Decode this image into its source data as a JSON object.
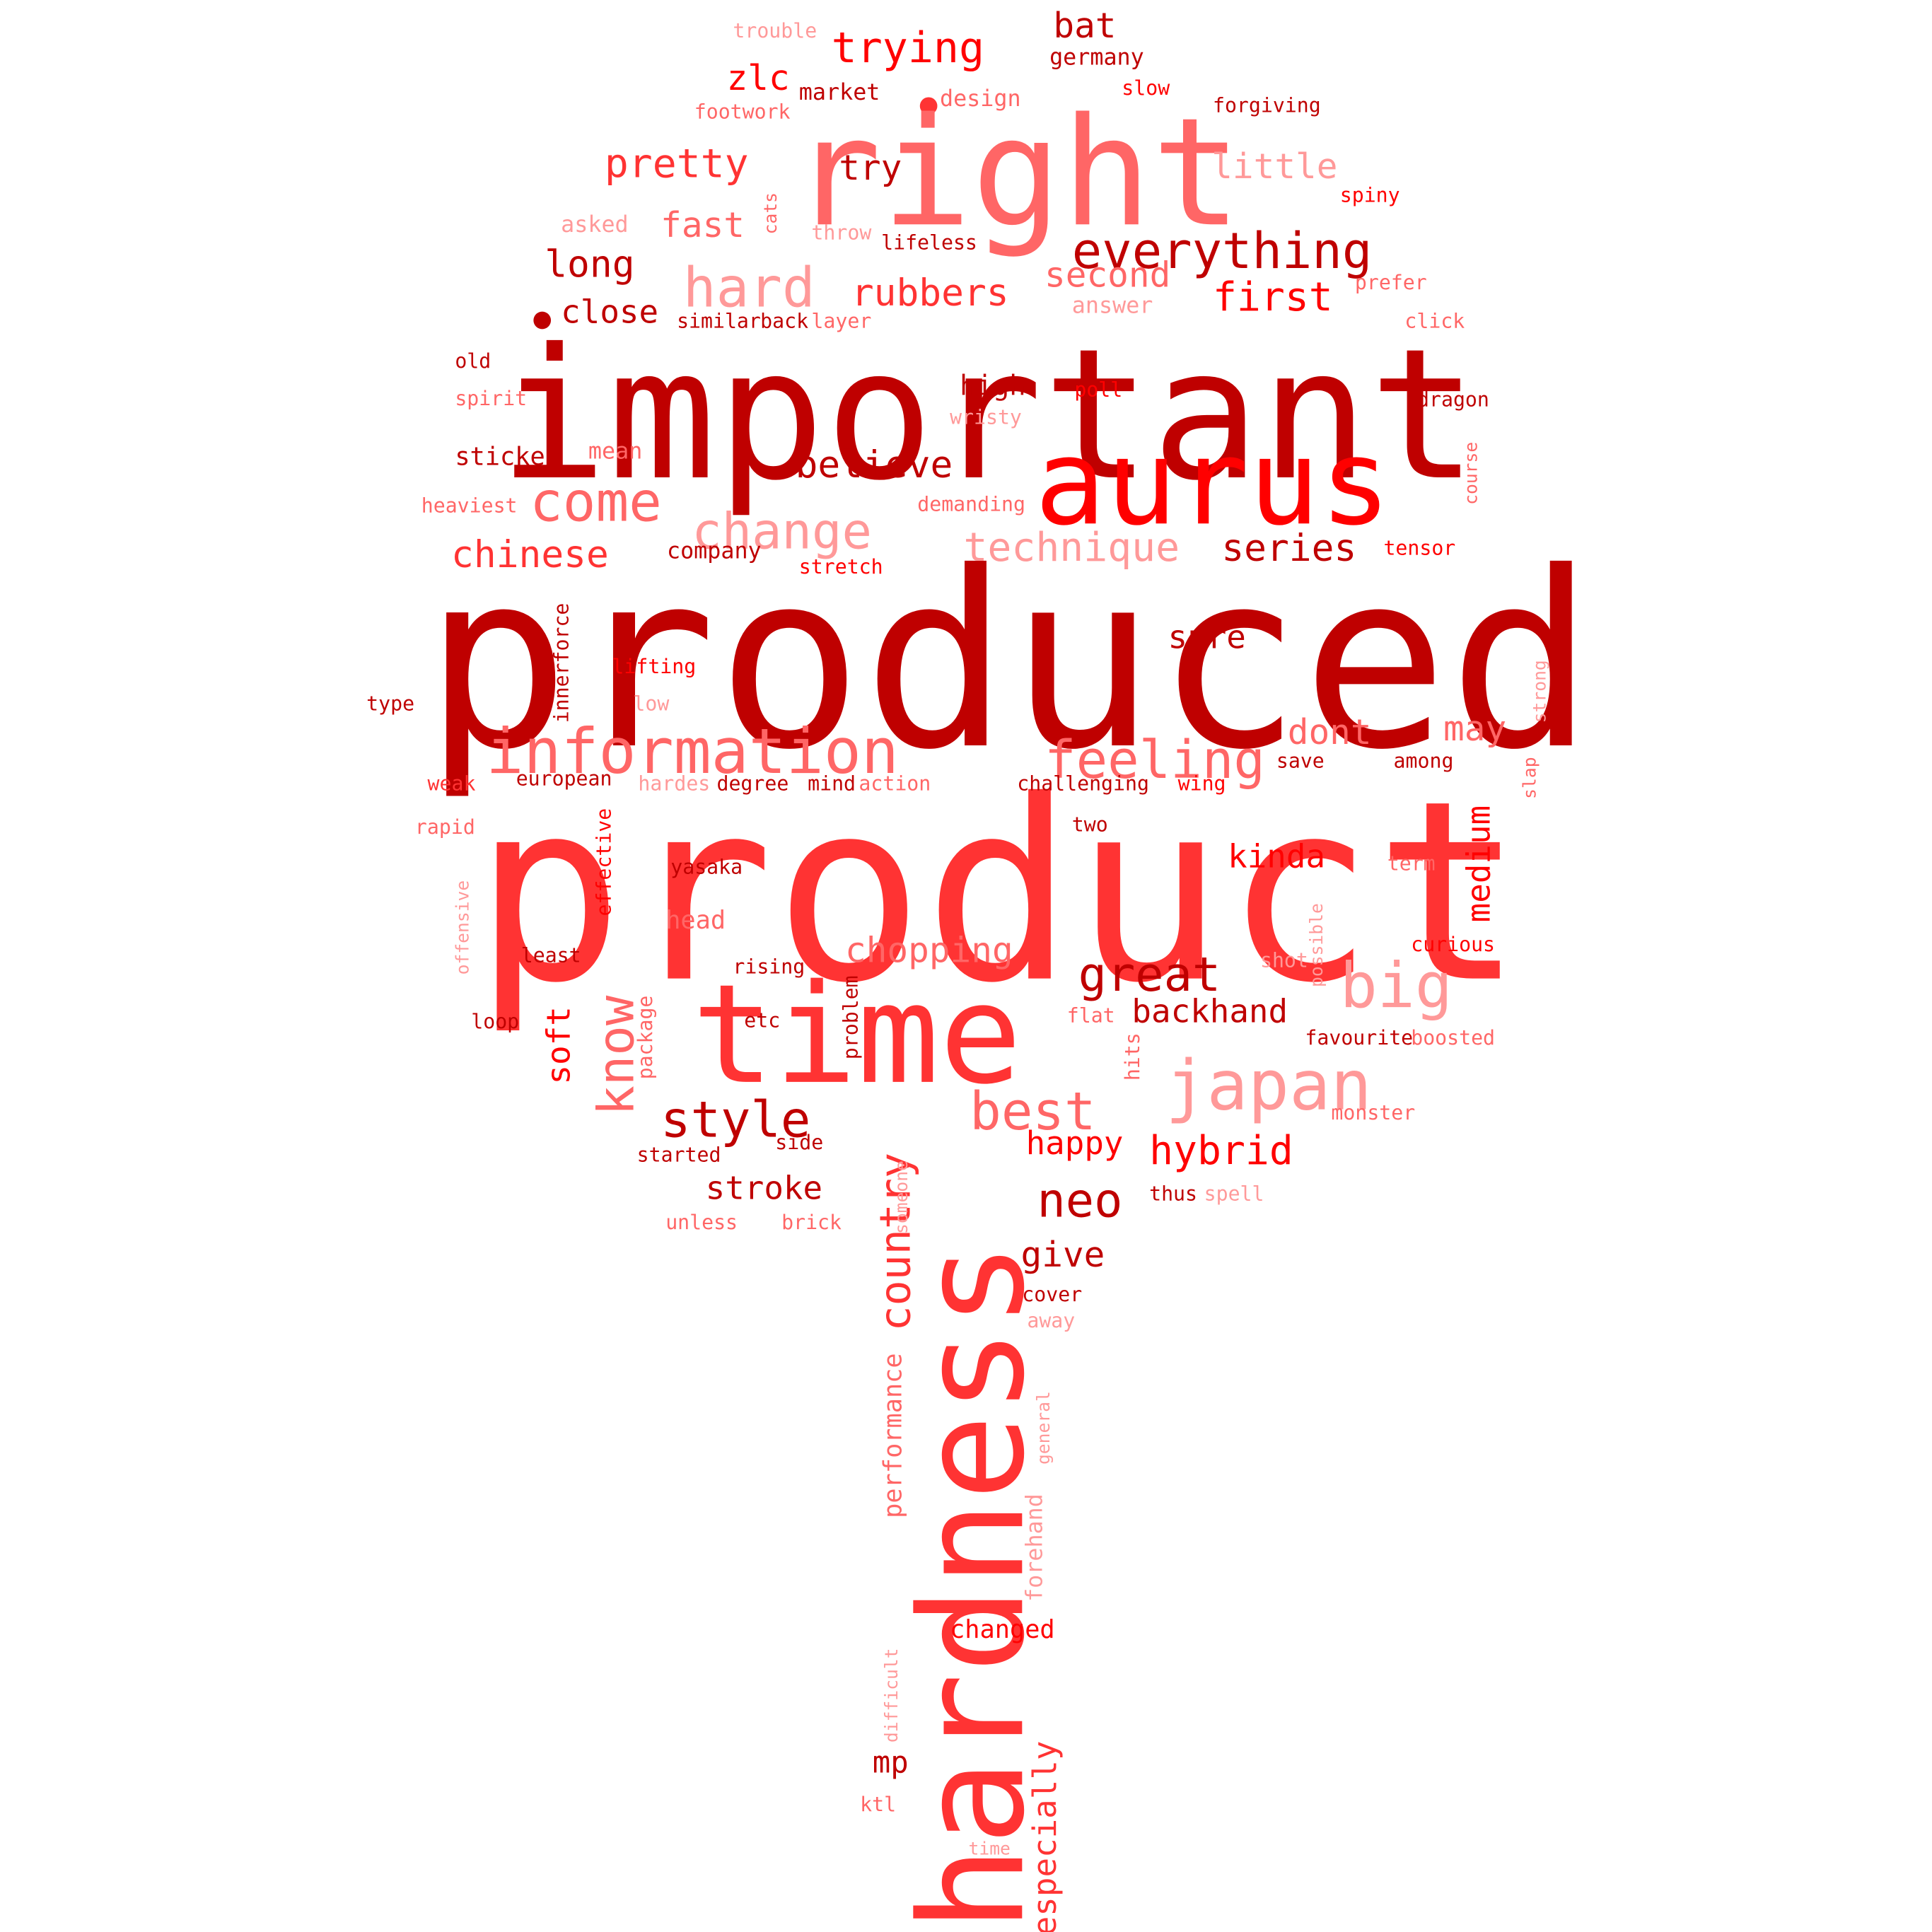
{
  "palette": {
    "dark": "#bf0000",
    "red": "#ff0000",
    "mid": "#ff3333",
    "light": "#ff6666",
    "pale": "#ff9999"
  },
  "words": [
    {
      "text": "produced",
      "c": "dark"
    },
    {
      "text": "product",
      "c": "mid"
    },
    {
      "text": "important",
      "c": "dark"
    },
    {
      "text": "right",
      "c": "light"
    },
    {
      "text": "aurus",
      "c": "red"
    },
    {
      "text": "hardness",
      "c": "mid"
    },
    {
      "text": "time",
      "c": "mid"
    },
    {
      "text": "information",
      "c": "light"
    },
    {
      "text": "everything",
      "c": "dark"
    },
    {
      "text": "change",
      "c": "pale"
    },
    {
      "text": "come",
      "c": "light"
    },
    {
      "text": "japan",
      "c": "pale"
    },
    {
      "text": "feeling",
      "c": "light"
    },
    {
      "text": "hard",
      "c": "pale"
    },
    {
      "text": "technique",
      "c": "pale"
    },
    {
      "text": "great",
      "c": "dark"
    },
    {
      "text": "big",
      "c": "pale"
    },
    {
      "text": "best",
      "c": "light"
    },
    {
      "text": "style",
      "c": "dark"
    },
    {
      "text": "know",
      "c": "light"
    },
    {
      "text": "country",
      "c": "mid"
    },
    {
      "text": "trying",
      "c": "red"
    },
    {
      "text": "pretty",
      "c": "mid"
    },
    {
      "text": "believe",
      "c": "dark"
    },
    {
      "text": "chinese",
      "c": "mid"
    },
    {
      "text": "series",
      "c": "dark"
    },
    {
      "text": "rubbers",
      "c": "mid"
    },
    {
      "text": "first",
      "c": "red"
    },
    {
      "text": "second",
      "c": "light"
    },
    {
      "text": "little",
      "c": "pale"
    },
    {
      "text": "long",
      "c": "dark"
    },
    {
      "text": "fast",
      "c": "light"
    },
    {
      "text": "try",
      "c": "dark"
    },
    {
      "text": "bat",
      "c": "dark"
    },
    {
      "text": "zlc",
      "c": "red"
    },
    {
      "text": "close",
      "c": "dark"
    },
    {
      "text": "hybrid",
      "c": "red"
    },
    {
      "text": "neo",
      "c": "dark"
    },
    {
      "text": "chopping",
      "c": "light"
    },
    {
      "text": "backhand",
      "c": "dark"
    },
    {
      "text": "happy",
      "c": "red"
    },
    {
      "text": "stroke",
      "c": "dark"
    },
    {
      "text": "give",
      "c": "dark"
    },
    {
      "text": "kinda",
      "c": "red"
    },
    {
      "text": "medium",
      "c": "red"
    },
    {
      "text": "may",
      "c": "light"
    },
    {
      "text": "dont",
      "c": "light"
    },
    {
      "text": "sure",
      "c": "dark"
    },
    {
      "text": "soft",
      "c": "red"
    },
    {
      "text": "especially",
      "c": "mid"
    },
    {
      "text": "performance",
      "c": "light"
    },
    {
      "text": "mp",
      "c": "dark"
    },
    {
      "text": "germany",
      "c": "dark"
    },
    {
      "text": "market",
      "c": "dark"
    },
    {
      "text": "design",
      "c": "light"
    },
    {
      "text": "footwork",
      "c": "light"
    },
    {
      "text": "trouble",
      "c": "pale"
    },
    {
      "text": "slow",
      "c": "red"
    },
    {
      "text": "forgiving",
      "c": "dark"
    },
    {
      "text": "spiny",
      "c": "red"
    },
    {
      "text": "asked",
      "c": "pale"
    },
    {
      "text": "cats",
      "c": "light"
    },
    {
      "text": "throw",
      "c": "pale"
    },
    {
      "text": "lifeless",
      "c": "dark"
    },
    {
      "text": "prefer",
      "c": "light"
    },
    {
      "text": "answer",
      "c": "pale"
    },
    {
      "text": "similar",
      "c": "dark"
    },
    {
      "text": "back",
      "c": "dark"
    },
    {
      "text": "layer",
      "c": "light"
    },
    {
      "text": "click",
      "c": "light"
    },
    {
      "text": "old",
      "c": "dark"
    },
    {
      "text": "spirit",
      "c": "light"
    },
    {
      "text": "high",
      "c": "dark"
    },
    {
      "text": "poll",
      "c": "red"
    },
    {
      "text": "wristy",
      "c": "pale"
    },
    {
      "text": "dragon",
      "c": "dark"
    },
    {
      "text": "sticker",
      "c": "dark"
    },
    {
      "text": "mean",
      "c": "light"
    },
    {
      "text": "course",
      "c": "light"
    },
    {
      "text": "heaviest",
      "c": "light"
    },
    {
      "text": "demanding",
      "c": "light"
    },
    {
      "text": "company",
      "c": "dark"
    },
    {
      "text": "stretch",
      "c": "red"
    },
    {
      "text": "tensor",
      "c": "red"
    },
    {
      "text": "innerforce",
      "c": "dark"
    },
    {
      "text": "lifting",
      "c": "red"
    },
    {
      "text": "strong",
      "c": "pale"
    },
    {
      "text": "type",
      "c": "dark"
    },
    {
      "text": "low",
      "c": "pale"
    },
    {
      "text": "save",
      "c": "dark"
    },
    {
      "text": "among",
      "c": "dark"
    },
    {
      "text": "slap",
      "c": "light"
    },
    {
      "text": "weak",
      "c": "mid"
    },
    {
      "text": "european",
      "c": "dark"
    },
    {
      "text": "hardes",
      "c": "pale"
    },
    {
      "text": "degree",
      "c": "dark"
    },
    {
      "text": "mind",
      "c": "dark"
    },
    {
      "text": "action",
      "c": "light"
    },
    {
      "text": "challenging",
      "c": "dark"
    },
    {
      "text": "wing",
      "c": "red"
    },
    {
      "text": "rapid",
      "c": "light"
    },
    {
      "text": "effective",
      "c": "red"
    },
    {
      "text": "two",
      "c": "dark"
    },
    {
      "text": "yasaka",
      "c": "dark"
    },
    {
      "text": "term",
      "c": "light"
    },
    {
      "text": "offensive",
      "c": "pale"
    },
    {
      "text": "head",
      "c": "light"
    },
    {
      "text": "possible",
      "c": "pale"
    },
    {
      "text": "curious",
      "c": "red"
    },
    {
      "text": "least",
      "c": "dark"
    },
    {
      "text": "rising",
      "c": "dark"
    },
    {
      "text": "shot",
      "c": "pale"
    },
    {
      "text": "loop",
      "c": "dark"
    },
    {
      "text": "package",
      "c": "light"
    },
    {
      "text": "etc",
      "c": "dark"
    },
    {
      "text": "problem",
      "c": "dark"
    },
    {
      "text": "flat",
      "c": "light"
    },
    {
      "text": "favourite",
      "c": "dark"
    },
    {
      "text": "boosted",
      "c": "light"
    },
    {
      "text": "hits",
      "c": "light"
    },
    {
      "text": "monster",
      "c": "light"
    },
    {
      "text": "started",
      "c": "dark"
    },
    {
      "text": "side",
      "c": "dark"
    },
    {
      "text": "someone",
      "c": "pale"
    },
    {
      "text": "thus",
      "c": "dark"
    },
    {
      "text": "spell",
      "c": "pale"
    },
    {
      "text": "unless",
      "c": "light"
    },
    {
      "text": "brick",
      "c": "light"
    },
    {
      "text": "cover",
      "c": "dark"
    },
    {
      "text": "away",
      "c": "pale"
    },
    {
      "text": "general",
      "c": "pale"
    },
    {
      "text": "forehand",
      "c": "pale"
    },
    {
      "text": "changed",
      "c": "red"
    },
    {
      "text": "difficult",
      "c": "pale"
    },
    {
      "text": "ktl",
      "c": "light"
    },
    {
      "text": "time",
      "c": "pale"
    }
  ]
}
